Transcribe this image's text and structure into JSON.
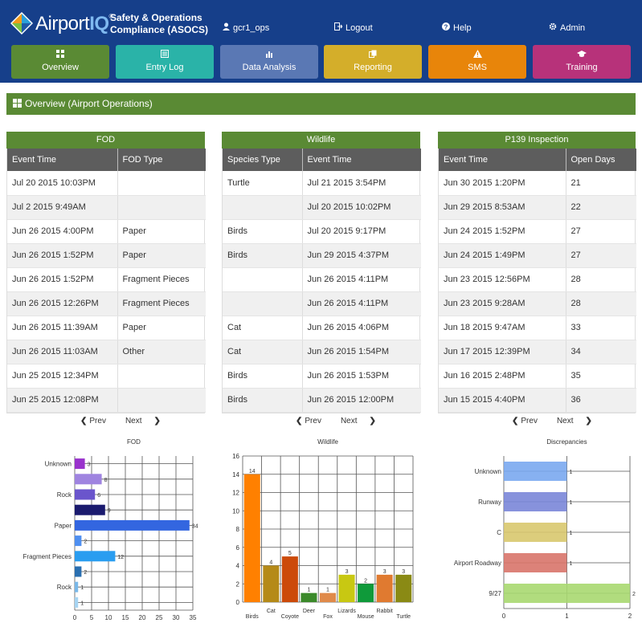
{
  "app": {
    "brand_light": "Airport",
    "brand_bold": "IQ",
    "reg": "®",
    "tagline_1": "Safety & Operations",
    "tagline_2": "Compliance (ASOCS)"
  },
  "toplinks": {
    "user": "gcr1_ops",
    "logout": "Logout",
    "help": "Help",
    "admin": "Admin"
  },
  "nav": [
    {
      "label": "Overview",
      "color": "#5a8a34",
      "icon": "grid-icon"
    },
    {
      "label": "Entry Log",
      "color": "#2ab3a8",
      "icon": "list-icon"
    },
    {
      "label": "Data Analysis",
      "color": "#5a78b4",
      "icon": "bar-chart-icon"
    },
    {
      "label": "Reporting",
      "color": "#d4ae2a",
      "icon": "copy-icon"
    },
    {
      "label": "SMS",
      "color": "#e8850a",
      "icon": "warning-icon"
    },
    {
      "label": "Training",
      "color": "#b7327a",
      "icon": "graduation-cap-icon"
    }
  ],
  "section": {
    "title": "Overview (Airport Operations)"
  },
  "fod": {
    "title": "FOD",
    "headers": [
      "Event Time",
      "FOD Type"
    ],
    "rows": [
      [
        "Jul 20 2015 10:03PM",
        ""
      ],
      [
        "Jul 2 2015 9:49AM",
        ""
      ],
      [
        "Jun 26 2015 4:00PM",
        "Paper"
      ],
      [
        "Jun 26 2015 1:52PM",
        "Paper"
      ],
      [
        "Jun 26 2015 1:52PM",
        "Fragment Pieces"
      ],
      [
        "Jun 26 2015 12:26PM",
        "Fragment Pieces"
      ],
      [
        "Jun 26 2015 11:39AM",
        "Paper"
      ],
      [
        "Jun 26 2015 11:03AM",
        "Other"
      ],
      [
        "Jun 25 2015 12:34PM",
        ""
      ],
      [
        "Jun 25 2015 12:08PM",
        ""
      ]
    ]
  },
  "wildlife": {
    "title": "Wildlife",
    "headers": [
      "Species Type",
      "Event Time"
    ],
    "rows": [
      [
        "Turtle",
        "Jul 21 2015 3:54PM"
      ],
      [
        "",
        "Jul 20 2015 10:02PM"
      ],
      [
        "Birds",
        "Jul 20 2015 9:17PM"
      ],
      [
        "Birds",
        "Jun 29 2015 4:37PM"
      ],
      [
        "",
        "Jun 26 2015 4:11PM"
      ],
      [
        "",
        "Jun 26 2015 4:11PM"
      ],
      [
        "Cat",
        "Jun 26 2015 4:06PM"
      ],
      [
        "Cat",
        "Jun 26 2015 1:54PM"
      ],
      [
        "Birds",
        "Jun 26 2015 1:53PM"
      ],
      [
        "Birds",
        "Jun 26 2015 12:00PM"
      ]
    ]
  },
  "p139": {
    "title": "P139 Inspection",
    "headers": [
      "Event Time",
      "Open Days"
    ],
    "rows": [
      [
        "Jun 30 2015 1:20PM",
        "21"
      ],
      [
        "Jun 29 2015 8:53AM",
        "22"
      ],
      [
        "Jun 24 2015 1:52PM",
        "27"
      ],
      [
        "Jun 24 2015 1:49PM",
        "27"
      ],
      [
        "Jun 23 2015 12:56PM",
        "28"
      ],
      [
        "Jun 23 2015 9:28AM",
        "28"
      ],
      [
        "Jun 18 2015 9:47AM",
        "33"
      ],
      [
        "Jun 17 2015 12:39PM",
        "34"
      ],
      [
        "Jun 16 2015 2:48PM",
        "35"
      ],
      [
        "Jun 15 2015 4:40PM",
        "36"
      ]
    ]
  },
  "pager": {
    "prev": "Prev",
    "next": "Next"
  },
  "chart_data": [
    {
      "type": "bar",
      "orientation": "horizontal",
      "title": "FOD",
      "categories": [
        "Unknown",
        "",
        "Rock",
        "",
        "Paper",
        "",
        "Fragment Pieces",
        "",
        "Rock",
        ""
      ],
      "values": [
        3,
        8,
        6,
        9,
        34,
        2,
        12,
        2,
        1,
        1
      ],
      "colors": [
        "#9933cc",
        "#9f84e0",
        "#6a55cc",
        "#1a1a6e",
        "#3366e0",
        "#4f8ff0",
        "#2a9df0",
        "#2a6fb0",
        "#7ab8e8",
        "#a6d4f2"
      ],
      "xlim": [
        0,
        35
      ],
      "xticks": [
        0,
        5,
        10,
        15,
        20,
        25,
        30,
        35
      ]
    },
    {
      "type": "bar",
      "orientation": "vertical",
      "title": "Wildlife",
      "categories": [
        "Birds",
        "Cat",
        "Coyote",
        "Deer",
        "Fox",
        "Lizards",
        "Mouse",
        "Rabbit",
        "Turtle"
      ],
      "values": [
        14,
        4,
        5,
        1,
        1,
        3,
        2,
        3,
        3
      ],
      "colors": [
        "#ff8000",
        "#b58a18",
        "#cc4a0a",
        "#3b8a2a",
        "#e08a4a",
        "#c8c812",
        "#0f9a3a",
        "#e07a30",
        "#8a8a14"
      ],
      "ylim": [
        0,
        16
      ],
      "yticks": [
        0,
        2,
        4,
        6,
        8,
        10,
        12,
        14,
        16
      ]
    },
    {
      "type": "bar",
      "orientation": "horizontal",
      "title": "Discrepancies",
      "categories": [
        "Unknown",
        "Runway",
        "C",
        "Airport Roadway",
        "9/27"
      ],
      "values": [
        1,
        1,
        1,
        1,
        2
      ],
      "colors": [
        "#7aa8f0",
        "#7a86d8",
        "#d8c86e",
        "#d8746a",
        "#a8d870"
      ],
      "xlim": [
        0,
        2
      ],
      "xticks": [
        0,
        1,
        2
      ]
    }
  ]
}
